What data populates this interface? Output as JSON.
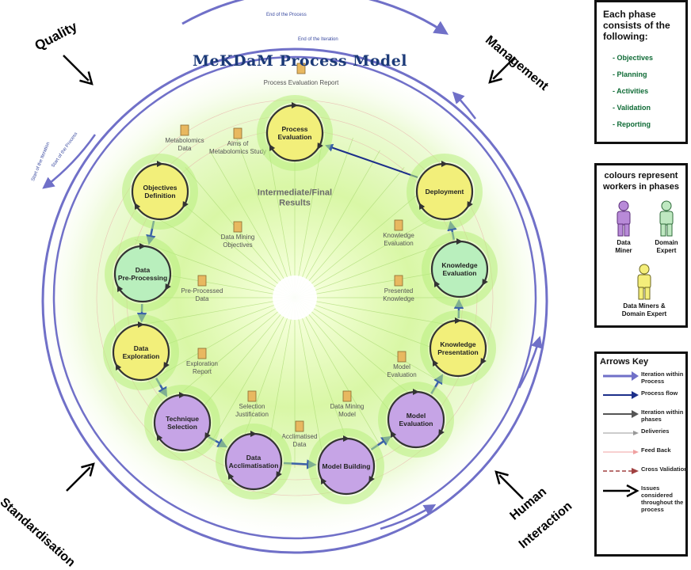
{
  "diagram": {
    "title": "MeKDaM Process Model",
    "end_of_process": "End of the Process",
    "end_of_iteration": "End of the Iteration",
    "start_of_iteration": "Start of the Iteration",
    "start_of_process": "Start of the Process",
    "corners": {
      "quality": "Quality",
      "management": "Management",
      "standardisation": "Standardisation",
      "human": "Human",
      "interaction": "Interaction"
    },
    "center_label": [
      "Intermediate/Final",
      "Results"
    ],
    "phases": [
      {
        "key": "process_evaluation",
        "lines": [
          "Process",
          "Evaluation"
        ],
        "color": "yellow"
      },
      {
        "key": "objectives_definition",
        "lines": [
          "Objectives",
          "Definition"
        ],
        "color": "yellow"
      },
      {
        "key": "data_preprocessing",
        "lines": [
          "Data",
          "Pre-Processing"
        ],
        "color": "green"
      },
      {
        "key": "data_exploration",
        "lines": [
          "Data",
          "Exploration"
        ],
        "color": "yellow"
      },
      {
        "key": "technique_selection",
        "lines": [
          "Technique",
          "Selection"
        ],
        "color": "purple"
      },
      {
        "key": "data_acclimatisation",
        "lines": [
          "Data",
          "Acclimatisation"
        ],
        "color": "purple"
      },
      {
        "key": "model_building",
        "lines": [
          "Model Building"
        ],
        "color": "purple"
      },
      {
        "key": "model_evaluation",
        "lines": [
          "Model",
          "Evaluation"
        ],
        "color": "purple"
      },
      {
        "key": "knowledge_presentation",
        "lines": [
          "Knowledge",
          "Presentation"
        ],
        "color": "yellow"
      },
      {
        "key": "knowledge_evaluation",
        "lines": [
          "Knowledge",
          "Evaluation"
        ],
        "color": "green"
      },
      {
        "key": "deployment",
        "lines": [
          "Deployment"
        ],
        "color": "yellow"
      }
    ],
    "artifacts": [
      {
        "key": "process_evaluation_report",
        "lines": [
          "Process Evaluation Report"
        ]
      },
      {
        "key": "metabolomics_data",
        "lines": [
          "Metabolomics",
          "Data"
        ]
      },
      {
        "key": "aims",
        "lines": [
          "Aims of",
          "Metabolomics Study"
        ]
      },
      {
        "key": "dm_objectives",
        "lines": [
          "Data Mining",
          "Objectives"
        ]
      },
      {
        "key": "preprocessed",
        "lines": [
          "Pre-Processed",
          "Data"
        ]
      },
      {
        "key": "exploration_report",
        "lines": [
          "Exploration",
          "Report"
        ]
      },
      {
        "key": "selection_justification",
        "lines": [
          "Selection",
          "Justification"
        ]
      },
      {
        "key": "acclimatised",
        "lines": [
          "Acclimatised",
          "Data"
        ]
      },
      {
        "key": "dm_model",
        "lines": [
          "Data Mining",
          "Model"
        ]
      },
      {
        "key": "model_eval",
        "lines": [
          "Model",
          "Evaluation"
        ]
      },
      {
        "key": "presented_knowledge",
        "lines": [
          "Presented",
          "Knowledge"
        ]
      },
      {
        "key": "knowledge_eval",
        "lines": [
          "Knowledge",
          "Evaluation"
        ]
      }
    ]
  },
  "phase_panel": {
    "title": "Each phase consists of the following:",
    "items": [
      "- Objectives",
      "- Planning",
      "- Activities",
      "- Validation",
      "- Reporting"
    ]
  },
  "colour_panel": {
    "title": "colours represent workers in phases",
    "data_miner": "Data Miner",
    "domain_expert": "Domain Expert",
    "both": "Data Miners & Domain Expert"
  },
  "arrows_key": {
    "title": "Arrows Key",
    "items": [
      {
        "label": "Iteration within Process"
      },
      {
        "label": "Process flow"
      },
      {
        "label": "Iteration within phases"
      },
      {
        "label": "Deliveries"
      },
      {
        "label": "Feed Back"
      },
      {
        "label": "Cross Validation"
      },
      {
        "label": "Issues considered throughout the process"
      }
    ]
  },
  "colors": {
    "yellow": "#f2ef7a",
    "green": "#b9efbd",
    "purple": "#c6a4e6",
    "iteration_arrow": "#7070c8",
    "process_flow": "#1c2f8a",
    "panel_text_green": "#0f6b36"
  }
}
